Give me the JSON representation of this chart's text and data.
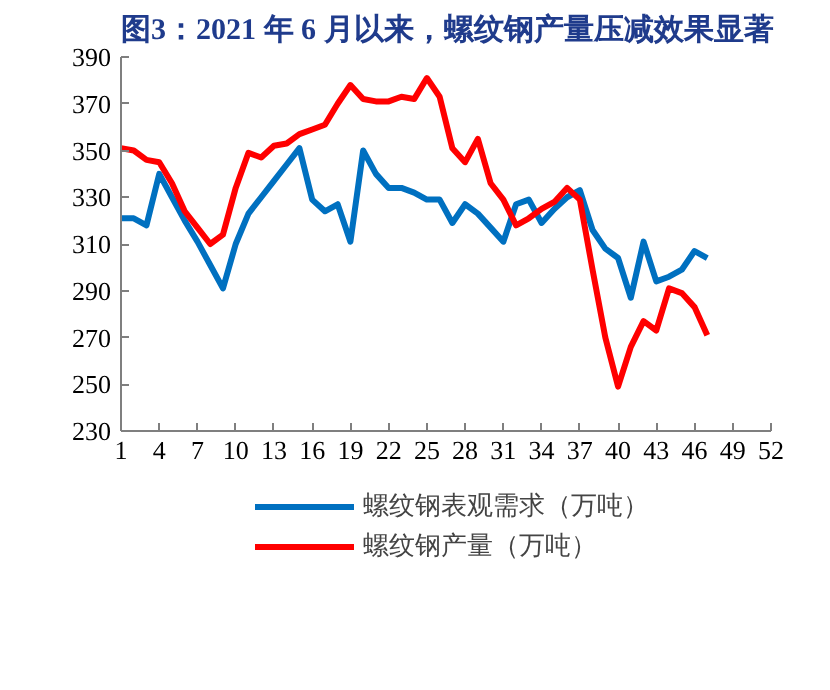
{
  "chart_data": {
    "type": "line",
    "title": "图3：2021 年 6 月以来，螺纹钢产量压减效果显著",
    "x": [
      1,
      2,
      3,
      4,
      5,
      6,
      7,
      8,
      9,
      10,
      11,
      12,
      13,
      14,
      15,
      16,
      17,
      18,
      19,
      20,
      21,
      22,
      23,
      24,
      25,
      26,
      27,
      28,
      29,
      30,
      31,
      32,
      33,
      34,
      35,
      36,
      37,
      38,
      39,
      40,
      41,
      42,
      43,
      44,
      45,
      46,
      47
    ],
    "series": [
      {
        "name": "螺纹钢表观需求（万吨）",
        "color": "#0070c0",
        "values": [
          321,
          321,
          318,
          340,
          330,
          320,
          311,
          301,
          291,
          310,
          323,
          330,
          337,
          344,
          351,
          329,
          324,
          327,
          311,
          350,
          340,
          334,
          334,
          332,
          329,
          329,
          319,
          327,
          323,
          317,
          311,
          327,
          329,
          319,
          325,
          330,
          333,
          316,
          308,
          304,
          287,
          311,
          294,
          296,
          299,
          307,
          304
        ]
      },
      {
        "name": "螺纹钢产量（万吨）",
        "color": "#ff0000",
        "values": [
          351,
          350,
          346,
          345,
          336,
          324,
          317,
          310,
          314,
          334,
          349,
          347,
          352,
          353,
          357,
          359,
          361,
          370,
          378,
          372,
          371,
          371,
          373,
          372,
          381,
          373,
          351,
          345,
          355,
          336,
          329,
          318,
          321,
          325,
          328,
          334,
          329,
          299,
          270,
          249,
          266,
          277,
          273,
          291,
          289,
          283,
          271
        ]
      }
    ],
    "xlim": [
      1,
      52
    ],
    "xticks": [
      1,
      4,
      7,
      10,
      13,
      16,
      19,
      22,
      25,
      28,
      31,
      34,
      37,
      40,
      43,
      46,
      49,
      52
    ],
    "ylim": [
      230,
      390
    ],
    "yticks": [
      230,
      250,
      270,
      290,
      310,
      330,
      350,
      370,
      390
    ],
    "grid": false,
    "legend": "bottom",
    "marker": "none",
    "line_style": "solid"
  }
}
